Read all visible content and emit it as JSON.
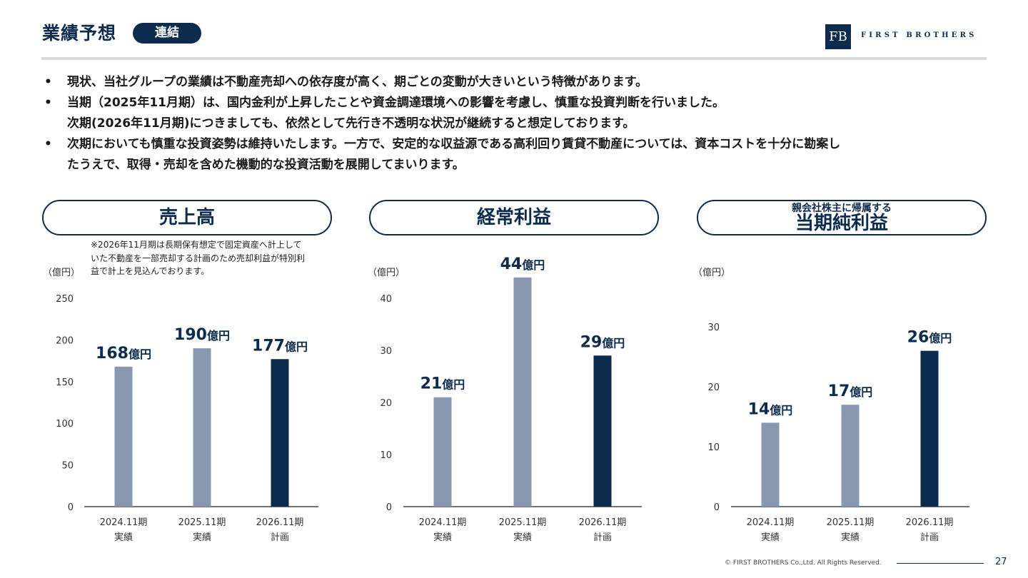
{
  "header": {
    "title": "業績予想",
    "tag": "連結",
    "logo_mark": "FB",
    "logo_text": "FIRST BROTHERS"
  },
  "bullets": [
    {
      "dot": "•",
      "text": "現状、当社グループの業績は不動産売却への依存度が高く、期ごとの変動が大きいという特徴があります。"
    },
    {
      "dot": "•",
      "text": "当期（2025年11月期）は、国内金利が上昇したことや資金調達環境への影響を考慮し、慎重な投資判断を行いました。"
    },
    {
      "dot": "",
      "text": "次期(2026年11月期)につきましても、依然として先行き不透明な状況が継続すると想定しております。"
    },
    {
      "dot": "•",
      "text": "次期においても慎重な投資姿勢は維持いたします。一方で、安定的な収益源である高利回り賃貸不動産については、資本コストを十分に勘案し"
    },
    {
      "dot": "",
      "text": "たうえで、取得・売却を含めた機動的な投資活動を展開してまいります。"
    }
  ],
  "panels": {
    "sales": {
      "title": "売上高"
    },
    "ordinary": {
      "title": "経常利益"
    },
    "net": {
      "title_top": "親会社株主に帰属する",
      "title_main": "当期純利益"
    }
  },
  "note": "※2026年11月期は長期保有想定で固定資産へ計上していた不動産を一部売却する計画のため売却利益が特別利益で計上を見込んでおります。",
  "colors": {
    "actual": "#8798b0",
    "plan": "#0d2b4c",
    "label": "#0d2b4c",
    "axis": "#222222"
  },
  "chart_data": [
    {
      "type": "bar",
      "title": "売上高",
      "ylabel": "（億円）",
      "categories": [
        [
          "2024.11期",
          "実績"
        ],
        [
          "2025.11期",
          "実績"
        ],
        [
          "2026.11期",
          "計画"
        ]
      ],
      "values": [
        168,
        190,
        177
      ],
      "data_labels": [
        {
          "num": "168",
          "unit": "億円"
        },
        {
          "num": "190",
          "unit": "億円"
        },
        {
          "num": "177",
          "unit": "億円"
        }
      ],
      "bar_colors": [
        "actual",
        "actual",
        "plan"
      ],
      "ylim": [
        0,
        250
      ],
      "yticks": [
        0,
        50,
        100,
        150,
        200,
        250
      ]
    },
    {
      "type": "bar",
      "title": "経常利益",
      "ylabel": "（億円）",
      "categories": [
        [
          "2024.11期",
          "実績"
        ],
        [
          "2025.11期",
          "実績"
        ],
        [
          "2026.11期",
          "計画"
        ]
      ],
      "values": [
        21,
        44,
        29
      ],
      "data_labels": [
        {
          "num": "21",
          "unit": "億円"
        },
        {
          "num": "44",
          "unit": "億円"
        },
        {
          "num": "29",
          "unit": "億円"
        }
      ],
      "bar_colors": [
        "actual",
        "actual",
        "plan"
      ],
      "ylim": [
        0,
        45
      ],
      "yticks": [
        0,
        10,
        20,
        30,
        40
      ]
    },
    {
      "type": "bar",
      "title": "親会社株主に帰属する当期純利益",
      "ylabel": "（億円）",
      "categories": [
        [
          "2024.11期",
          "実績"
        ],
        [
          "2025.11期",
          "実績"
        ],
        [
          "2026.11期",
          "計画"
        ]
      ],
      "values": [
        14,
        17,
        26
      ],
      "data_labels": [
        {
          "num": "14",
          "unit": "億円"
        },
        {
          "num": "17",
          "unit": "億円"
        },
        {
          "num": "26",
          "unit": "億円"
        }
      ],
      "bar_colors": [
        "actual",
        "actual",
        "plan"
      ],
      "ylim": [
        0,
        30
      ],
      "yticks": [
        0,
        10,
        20,
        30
      ]
    }
  ],
  "footer": {
    "copyright": "© FIRST BROTHERS Co.,Ltd. All Rights Reserved.",
    "page": "27"
  }
}
